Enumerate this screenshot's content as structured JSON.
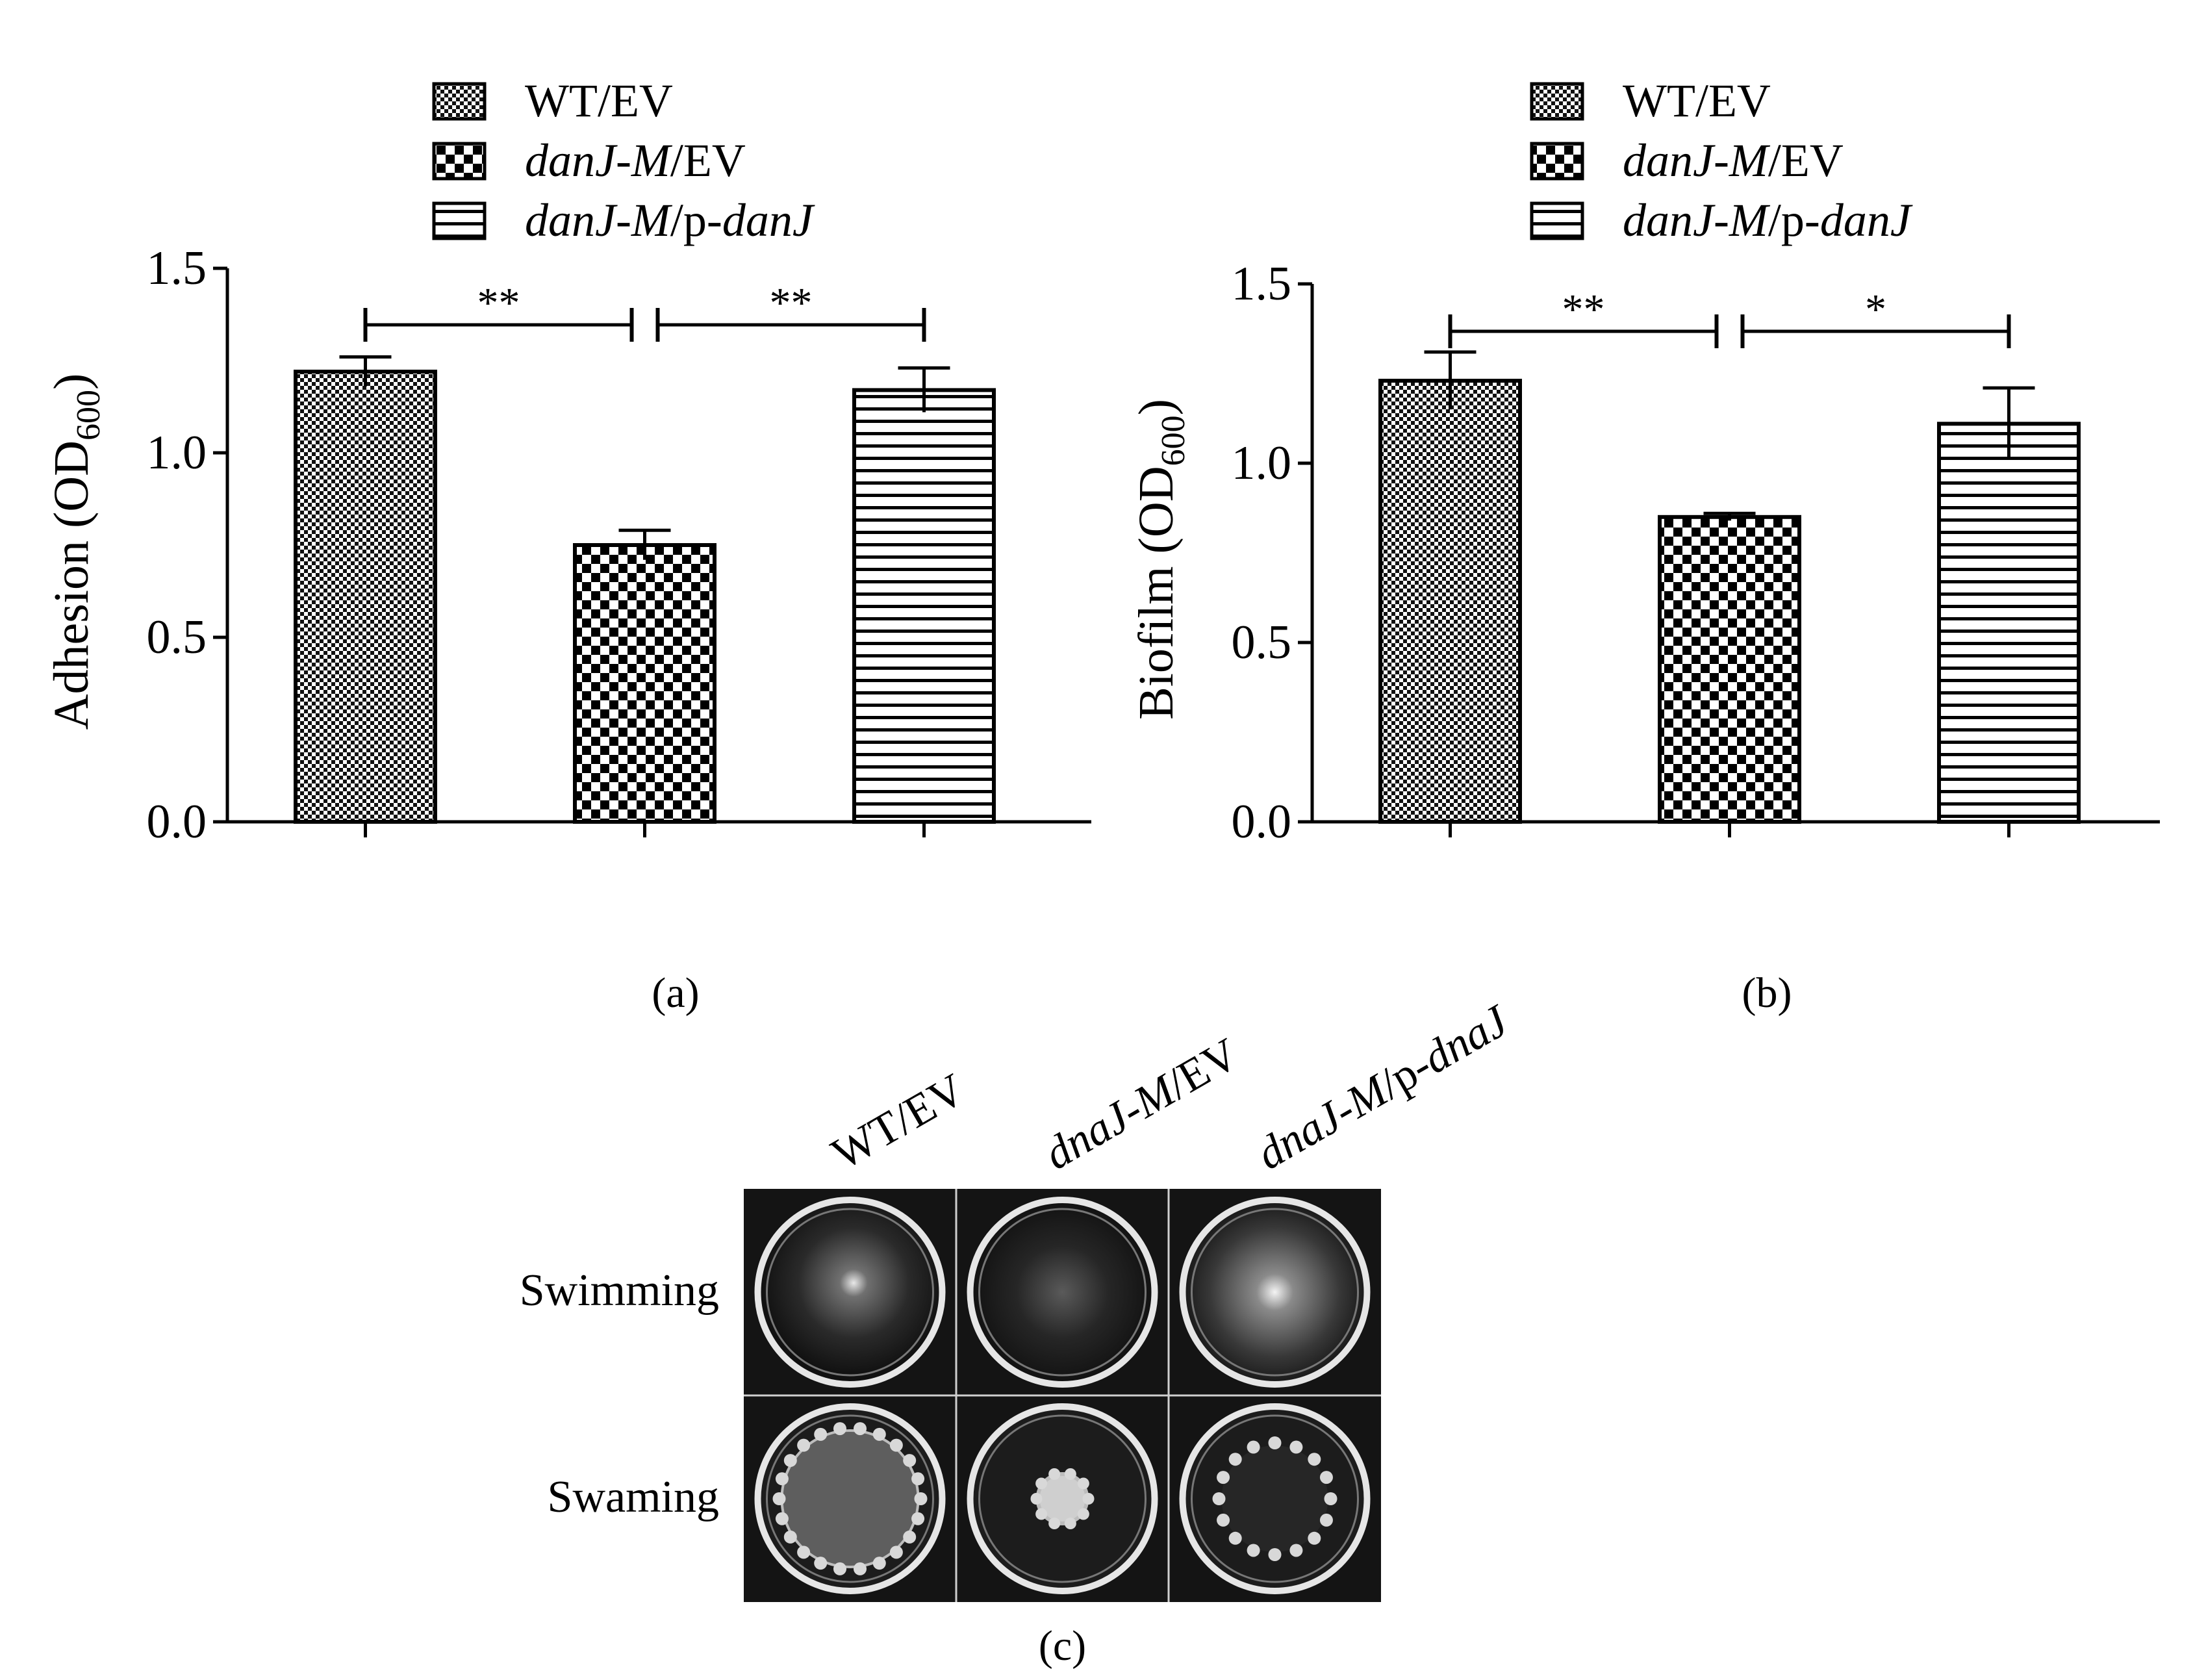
{
  "chart_data": [
    {
      "type": "bar",
      "panel_label": "(a)",
      "ylabel": "Adhesion (OD",
      "ylabel_sub": "600",
      "ylabel_close": ")",
      "ylim": [
        0,
        1.5
      ],
      "yticks": [
        "0.0",
        "0.5",
        "1.0",
        "1.5"
      ],
      "grid": false,
      "legend_position": "top",
      "series": [
        {
          "name": "WT/EV",
          "name_parts": [
            "WT/EV"
          ],
          "pattern": "fine-checker",
          "value": 1.22,
          "error": 0.04
        },
        {
          "name": "danJ-M/EV",
          "name_parts": [
            "danJ-M",
            "/EV"
          ],
          "pattern": "checker",
          "value": 0.75,
          "error": 0.04
        },
        {
          "name": "danJ-M/p-danJ",
          "name_parts": [
            "danJ-M",
            "/p-",
            "danJ"
          ],
          "pattern": "h-lines",
          "value": 1.17,
          "error": 0.06
        }
      ],
      "significance": [
        {
          "from": 0,
          "to": 1,
          "label": "**"
        },
        {
          "from": 1,
          "to": 2,
          "label": "**"
        }
      ]
    },
    {
      "type": "bar",
      "panel_label": "(b)",
      "ylabel": "Biofilm (OD",
      "ylabel_sub": "600",
      "ylabel_close": ")",
      "ylim": [
        0,
        1.5
      ],
      "yticks": [
        "0.0",
        "0.5",
        "1.0",
        "1.5"
      ],
      "grid": false,
      "legend_position": "top",
      "series": [
        {
          "name": "WT/EV",
          "name_parts": [
            "WT/EV"
          ],
          "pattern": "fine-checker",
          "value": 1.23,
          "error": 0.08
        },
        {
          "name": "danJ-M/EV",
          "name_parts": [
            "danJ-M",
            "/EV"
          ],
          "pattern": "checker",
          "value": 0.85,
          "error": 0.01
        },
        {
          "name": "danJ-M/p-danJ",
          "name_parts": [
            "danJ-M",
            "/p-",
            "danJ"
          ],
          "pattern": "h-lines",
          "value": 1.11,
          "error": 0.1
        }
      ],
      "significance": [
        {
          "from": 0,
          "to": 1,
          "label": "**"
        },
        {
          "from": 1,
          "to": 2,
          "label": "*"
        }
      ]
    }
  ],
  "image_panel": {
    "panel_label": "(c)",
    "columns": [
      {
        "parts": [
          "WT/EV"
        ]
      },
      {
        "parts": [
          "dnaJ-M",
          "/EV"
        ]
      },
      {
        "parts": [
          "dnaJ-M",
          "/p-",
          "dnaJ"
        ]
      }
    ],
    "rows": [
      "Swimming",
      "Swaming"
    ]
  }
}
